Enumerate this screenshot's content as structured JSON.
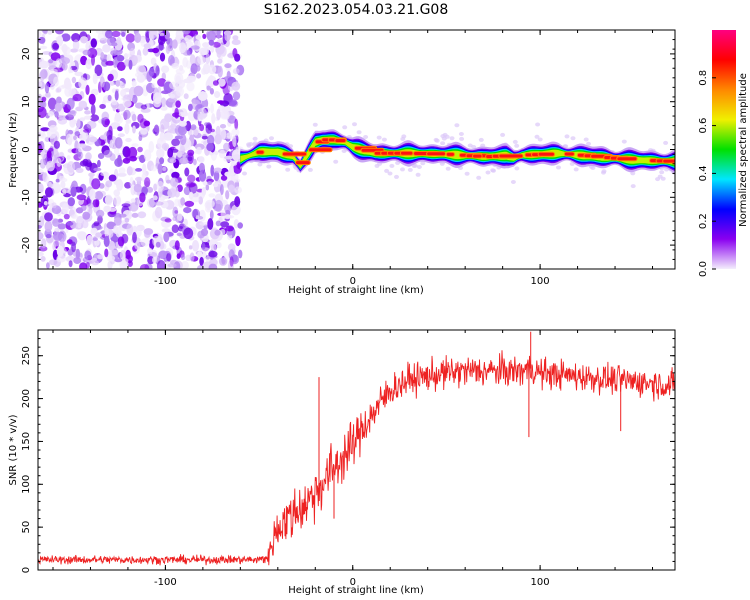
{
  "title": "S162.2023.054.03.21.G08",
  "chart_data": [
    {
      "type": "heatmap",
      "xlabel": "Height of straight line (km)",
      "ylabel": "Frequency (Hz)",
      "xlim": [
        -168,
        172
      ],
      "ylim": [
        -25,
        25
      ],
      "xticks": [
        -100,
        0,
        100
      ],
      "xtick_labels": [
        "-100",
        "0",
        "100"
      ],
      "yticks": [
        -20,
        -10,
        0,
        10,
        20
      ],
      "ytick_labels": [
        "-20",
        "-10",
        "0",
        "10",
        "20"
      ],
      "noise_region_x": [
        -168,
        -60
      ],
      "ridge": {
        "x": [
          -60,
          -50,
          -40,
          -32,
          -28,
          -24,
          -20,
          -16,
          -10,
          -4,
          0,
          6,
          12,
          18,
          30,
          50,
          70,
          82,
          86,
          90,
          100,
          110,
          130,
          150,
          172
        ],
        "freq": [
          -2,
          -0.5,
          -0.5,
          -1.5,
          -3.5,
          -1,
          1.5,
          2,
          2,
          1.5,
          0.5,
          -0.2,
          -0.8,
          -0.8,
          -0.8,
          -1,
          -1.5,
          -1.3,
          -1.8,
          -1.2,
          -1,
          -0.8,
          -1.5,
          -2.2,
          -2.5
        ]
      },
      "colorbar": {
        "label": "Normalized spectral amplitude",
        "range": [
          0,
          1
        ],
        "ticks": [
          0,
          0.2,
          0.4,
          0.6,
          0.8
        ],
        "tick_labels": [
          "0.0",
          "0.2",
          "0.4",
          "0.6",
          "0.8"
        ],
        "colors": [
          "#f4eefc",
          "#8a00f0",
          "#0000ff",
          "#00e6ff",
          "#00e000",
          "#f0f000",
          "#ff8800",
          "#ff0000",
          "#ff0080"
        ]
      }
    },
    {
      "type": "line",
      "xlabel": "Height of straight line (km)",
      "ylabel": "SNR (10 * v/v)",
      "xlim": [
        -168,
        172
      ],
      "ylim": [
        0,
        280
      ],
      "xticks": [
        -100,
        0,
        100
      ],
      "xtick_labels": [
        "-100",
        "0",
        "100"
      ],
      "yticks": [
        0,
        50,
        100,
        150,
        200,
        250
      ],
      "ytick_labels": [
        "0",
        "50",
        "100",
        "150",
        "200",
        "250"
      ],
      "line_color": "#ee2222",
      "series": [
        {
          "x": [
            -168,
            -140,
            -110,
            -80,
            -60,
            -50,
            -45,
            -42,
            -38,
            -34,
            -30,
            -26,
            -22,
            -19,
            -16,
            -12,
            -8,
            -4,
            0,
            5,
            10,
            15,
            20,
            30,
            40,
            50,
            60,
            70,
            80,
            90,
            95,
            100,
            110,
            120,
            130,
            140,
            150,
            160,
            172
          ],
          "y": [
            12,
            12,
            12,
            12,
            12,
            12,
            15,
            40,
            55,
            60,
            70,
            75,
            85,
            95,
            100,
            115,
            125,
            135,
            145,
            165,
            180,
            195,
            210,
            222,
            226,
            230,
            232,
            232,
            232,
            232,
            235,
            230,
            228,
            226,
            224,
            222,
            220,
            218,
            215
          ],
          "noise": [
            4,
            4,
            4,
            4,
            4,
            4,
            8,
            20,
            20,
            25,
            25,
            25,
            25,
            25,
            25,
            25,
            25,
            25,
            22,
            20,
            18,
            18,
            16,
            15,
            15,
            15,
            15,
            15,
            15,
            15,
            15,
            15,
            14,
            14,
            14,
            14,
            14,
            14,
            14
          ]
        }
      ],
      "spikes": [
        {
          "x": -18,
          "y": 225
        },
        {
          "x": -10,
          "y": 60
        },
        {
          "x": 95,
          "y": 278
        },
        {
          "x": 94,
          "y": 155
        },
        {
          "x": 143,
          "y": 162
        }
      ]
    }
  ]
}
